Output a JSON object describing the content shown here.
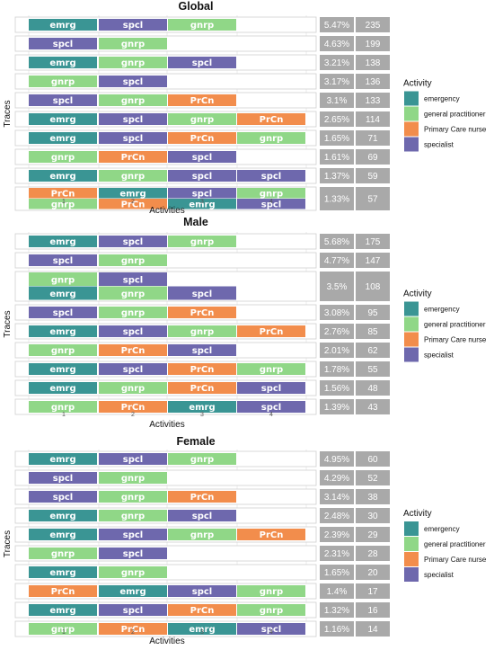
{
  "colors": {
    "emergency": "#3a9594",
    "general practitioner": "#90d787",
    "Primary Care nurse": "#f28d4c",
    "specialist": "#6e68ad"
  },
  "abbrev": {
    "emergency": "emrg",
    "general practitioner": "gnrp",
    "Primary Care nurse": "PrCn",
    "specialist": "spcl"
  },
  "chart_data": [
    {
      "type": "trace-explorer",
      "title": "Global",
      "xlabel": "Activities",
      "ylabel": "Traces",
      "x_ticks": [
        "1",
        "2",
        "3",
        "4"
      ],
      "legend_title": "Activity",
      "legend": [
        "emergency",
        "general practitioner",
        "Primary Care nurse",
        "specialist"
      ],
      "legend_position": "right",
      "traces": [
        {
          "steps": [
            [
              "emergency"
            ],
            [
              "specialist"
            ],
            [
              "general practitioner"
            ]
          ],
          "pct": "5.47%",
          "count": "235"
        },
        {
          "steps": [
            [
              "specialist"
            ],
            [
              "general practitioner"
            ]
          ],
          "pct": "4.63%",
          "count": "199"
        },
        {
          "steps": [
            [
              "emergency"
            ],
            [
              "general practitioner"
            ],
            [
              "specialist"
            ]
          ],
          "pct": "3.21%",
          "count": "138"
        },
        {
          "steps": [
            [
              "general practitioner"
            ],
            [
              "specialist"
            ]
          ],
          "pct": "3.17%",
          "count": "136"
        },
        {
          "steps": [
            [
              "specialist"
            ],
            [
              "general practitioner"
            ],
            [
              "Primary Care nurse"
            ]
          ],
          "pct": "3.1%",
          "count": "133"
        },
        {
          "steps": [
            [
              "emergency"
            ],
            [
              "specialist"
            ],
            [
              "general practitioner"
            ],
            [
              "Primary Care nurse"
            ]
          ],
          "pct": "2.65%",
          "count": "114"
        },
        {
          "steps": [
            [
              "emergency"
            ],
            [
              "specialist"
            ],
            [
              "Primary Care nurse"
            ],
            [
              "general practitioner"
            ]
          ],
          "pct": "1.65%",
          "count": "71"
        },
        {
          "steps": [
            [
              "general practitioner"
            ],
            [
              "Primary Care nurse"
            ],
            [
              "specialist"
            ]
          ],
          "pct": "1.61%",
          "count": "69"
        },
        {
          "steps": [
            [
              "emergency"
            ],
            [
              "general practitioner"
            ],
            [
              "specialist"
            ],
            [
              "specialist"
            ]
          ],
          "pct": "1.37%",
          "count": "59"
        },
        {
          "steps": [
            [
              "Primary Care nurse",
              "general practitioner"
            ],
            [
              "emergency",
              "Primary Care nurse"
            ],
            [
              "specialist",
              "emergency"
            ],
            [
              "general practitioner",
              "specialist"
            ]
          ],
          "pct": "1.33%",
          "count": "57"
        }
      ]
    },
    {
      "type": "trace-explorer",
      "title": "Male",
      "xlabel": "Activities",
      "ylabel": "Traces",
      "x_ticks": [
        "1",
        "2",
        "3",
        "4"
      ],
      "legend_title": "Activity",
      "legend": [
        "emergency",
        "general practitioner",
        "Primary Care nurse",
        "specialist"
      ],
      "legend_position": "right",
      "traces": [
        {
          "steps": [
            [
              "emergency"
            ],
            [
              "specialist"
            ],
            [
              "general practitioner"
            ]
          ],
          "pct": "5.68%",
          "count": "175"
        },
        {
          "steps": [
            [
              "specialist"
            ],
            [
              "general practitioner"
            ]
          ],
          "pct": "4.77%",
          "count": "147"
        },
        {
          "steps": [
            [
              "general practitioner",
              "emergency"
            ],
            [
              "specialist",
              "general practitioner"
            ],
            [
              "",
              "specialist"
            ]
          ],
          "pct": "3.5%",
          "count": "108"
        },
        {
          "steps": [
            [
              "specialist"
            ],
            [
              "general practitioner"
            ],
            [
              "Primary Care nurse"
            ]
          ],
          "pct": "3.08%",
          "count": "95"
        },
        {
          "steps": [
            [
              "emergency"
            ],
            [
              "specialist"
            ],
            [
              "general practitioner"
            ],
            [
              "Primary Care nurse"
            ]
          ],
          "pct": "2.76%",
          "count": "85"
        },
        {
          "steps": [
            [
              "general practitioner"
            ],
            [
              "Primary Care nurse"
            ],
            [
              "specialist"
            ]
          ],
          "pct": "2.01%",
          "count": "62"
        },
        {
          "steps": [
            [
              "emergency"
            ],
            [
              "specialist"
            ],
            [
              "Primary Care nurse"
            ],
            [
              "general practitioner"
            ]
          ],
          "pct": "1.78%",
          "count": "55"
        },
        {
          "steps": [
            [
              "emergency"
            ],
            [
              "general practitioner"
            ],
            [
              "Primary Care nurse"
            ],
            [
              "specialist"
            ]
          ],
          "pct": "1.56%",
          "count": "48"
        },
        {
          "steps": [
            [
              "general practitioner"
            ],
            [
              "Primary Care nurse"
            ],
            [
              "emergency"
            ],
            [
              "specialist"
            ]
          ],
          "pct": "1.39%",
          "count": "43"
        }
      ]
    },
    {
      "type": "trace-explorer",
      "title": "Female",
      "xlabel": "Activities",
      "ylabel": "Traces",
      "x_ticks": [
        "1",
        "2",
        "3",
        "4"
      ],
      "legend_title": "Activity",
      "legend": [
        "emergency",
        "general practitioner",
        "Primary Care nurse",
        "specialist"
      ],
      "legend_position": "right",
      "traces": [
        {
          "steps": [
            [
              "emergency"
            ],
            [
              "specialist"
            ],
            [
              "general practitioner"
            ]
          ],
          "pct": "4.95%",
          "count": "60"
        },
        {
          "steps": [
            [
              "specialist"
            ],
            [
              "general practitioner"
            ]
          ],
          "pct": "4.29%",
          "count": "52"
        },
        {
          "steps": [
            [
              "specialist"
            ],
            [
              "general practitioner"
            ],
            [
              "Primary Care nurse"
            ]
          ],
          "pct": "3.14%",
          "count": "38"
        },
        {
          "steps": [
            [
              "emergency"
            ],
            [
              "general practitioner"
            ],
            [
              "specialist"
            ]
          ],
          "pct": "2.48%",
          "count": "30"
        },
        {
          "steps": [
            [
              "emergency"
            ],
            [
              "specialist"
            ],
            [
              "general practitioner"
            ],
            [
              "Primary Care nurse"
            ]
          ],
          "pct": "2.39%",
          "count": "29"
        },
        {
          "steps": [
            [
              "general practitioner"
            ],
            [
              "specialist"
            ]
          ],
          "pct": "2.31%",
          "count": "28"
        },
        {
          "steps": [
            [
              "emergency"
            ],
            [
              "general practitioner"
            ]
          ],
          "pct": "1.65%",
          "count": "20"
        },
        {
          "steps": [
            [
              "Primary Care nurse"
            ],
            [
              "emergency"
            ],
            [
              "specialist"
            ],
            [
              "general practitioner"
            ]
          ],
          "pct": "1.4%",
          "count": "17"
        },
        {
          "steps": [
            [
              "emergency"
            ],
            [
              "specialist"
            ],
            [
              "Primary Care nurse"
            ],
            [
              "general practitioner"
            ]
          ],
          "pct": "1.32%",
          "count": "16"
        },
        {
          "steps": [
            [
              "general practitioner"
            ],
            [
              "Primary Care nurse"
            ],
            [
              "emergency"
            ],
            [
              "specialist"
            ]
          ],
          "pct": "1.16%",
          "count": "14"
        }
      ]
    }
  ]
}
